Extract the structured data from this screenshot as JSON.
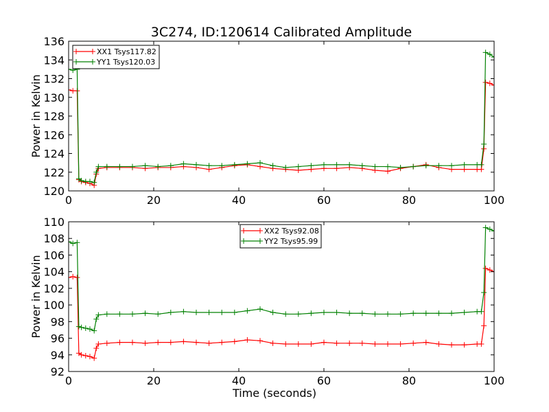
{
  "title": "3C274, ID:120614 Calibrated Amplitude",
  "chart_data": [
    {
      "type": "line",
      "ylabel": "Power in Kelvin",
      "xlabel": "",
      "xlim": [
        0,
        100
      ],
      "ylim": [
        120,
        136
      ],
      "xticks": [
        "0",
        "20",
        "40",
        "60",
        "80",
        "100"
      ],
      "yticks": [
        "120",
        "122",
        "124",
        "126",
        "128",
        "130",
        "132",
        "134",
        "136"
      ],
      "legend_position": "top-left",
      "marker": "plus",
      "series": [
        {
          "name": "XX1 Tsys117.82",
          "color": "#ff0000",
          "x": [
            0,
            1,
            2,
            2.4,
            3,
            4,
            5,
            6,
            6.5,
            7,
            9,
            12,
            15,
            18,
            21,
            24,
            27,
            30,
            33,
            36,
            39,
            42,
            45,
            48,
            51,
            54,
            57,
            60,
            63,
            66,
            69,
            72,
            75,
            78,
            81,
            84,
            87,
            90,
            93,
            96,
            97,
            97.6,
            98,
            99,
            100
          ],
          "y": [
            130.8,
            130.7,
            130.7,
            121.2,
            121.0,
            120.9,
            120.8,
            120.6,
            121.8,
            122.4,
            122.5,
            122.5,
            122.5,
            122.4,
            122.5,
            122.5,
            122.6,
            122.5,
            122.3,
            122.5,
            122.7,
            122.8,
            122.6,
            122.4,
            122.3,
            122.2,
            122.3,
            122.4,
            122.4,
            122.5,
            122.4,
            122.2,
            122.1,
            122.4,
            122.6,
            122.8,
            122.5,
            122.3,
            122.3,
            122.3,
            122.3,
            124.5,
            131.6,
            131.5,
            131.3
          ]
        },
        {
          "name": "YY1 Tsys120.03",
          "color": "#008000",
          "x": [
            0,
            1,
            2,
            2.4,
            3,
            4,
            5,
            6,
            6.5,
            7,
            9,
            12,
            15,
            18,
            21,
            24,
            27,
            30,
            33,
            36,
            39,
            42,
            45,
            48,
            51,
            54,
            57,
            60,
            63,
            66,
            69,
            72,
            75,
            78,
            81,
            84,
            87,
            90,
            93,
            96,
            97,
            97.6,
            98,
            99,
            100
          ],
          "y": [
            133.0,
            132.9,
            133.0,
            121.3,
            121.1,
            121.0,
            121.0,
            120.9,
            122.0,
            122.6,
            122.6,
            122.6,
            122.6,
            122.7,
            122.6,
            122.7,
            122.9,
            122.8,
            122.7,
            122.7,
            122.8,
            122.9,
            123.0,
            122.7,
            122.5,
            122.6,
            122.7,
            122.8,
            122.8,
            122.8,
            122.7,
            122.6,
            122.6,
            122.5,
            122.6,
            122.7,
            122.7,
            122.7,
            122.8,
            122.8,
            122.8,
            125.0,
            134.8,
            134.6,
            134.3
          ]
        }
      ]
    },
    {
      "type": "line",
      "ylabel": "Power in Kelvin",
      "xlabel": "Time (seconds)",
      "xlim": [
        0,
        100
      ],
      "ylim": [
        92,
        110
      ],
      "xticks": [
        "0",
        "20",
        "40",
        "60",
        "80",
        "100"
      ],
      "yticks": [
        "92",
        "94",
        "96",
        "98",
        "100",
        "102",
        "104",
        "106",
        "108",
        "110"
      ],
      "legend_position": "top-center",
      "marker": "plus",
      "series": [
        {
          "name": "XX2 Tsys92.08",
          "color": "#ff0000",
          "x": [
            0,
            1,
            2,
            2.4,
            3,
            4,
            5,
            6,
            6.5,
            7,
            9,
            12,
            15,
            18,
            21,
            24,
            27,
            30,
            33,
            36,
            39,
            42,
            45,
            48,
            51,
            54,
            57,
            60,
            63,
            66,
            69,
            72,
            75,
            78,
            81,
            84,
            87,
            90,
            93,
            96,
            97,
            97.6,
            98,
            99,
            100
          ],
          "y": [
            103.3,
            103.4,
            103.3,
            94.2,
            94.0,
            93.9,
            93.8,
            93.6,
            94.8,
            95.3,
            95.4,
            95.5,
            95.5,
            95.4,
            95.5,
            95.5,
            95.6,
            95.5,
            95.4,
            95.5,
            95.6,
            95.8,
            95.7,
            95.4,
            95.3,
            95.3,
            95.3,
            95.5,
            95.4,
            95.4,
            95.4,
            95.3,
            95.3,
            95.3,
            95.4,
            95.5,
            95.3,
            95.2,
            95.2,
            95.3,
            95.3,
            97.5,
            104.4,
            104.2,
            104.0
          ]
        },
        {
          "name": "YY2 Tsys95.99",
          "color": "#008000",
          "x": [
            0,
            1,
            2,
            2.4,
            3,
            4,
            5,
            6,
            6.5,
            7,
            9,
            12,
            15,
            18,
            21,
            24,
            27,
            30,
            33,
            36,
            39,
            42,
            45,
            48,
            51,
            54,
            57,
            60,
            63,
            66,
            69,
            72,
            75,
            78,
            81,
            84,
            87,
            90,
            93,
            96,
            97,
            97.6,
            98,
            99,
            100
          ],
          "y": [
            107.6,
            107.4,
            107.5,
            97.4,
            97.3,
            97.2,
            97.1,
            96.9,
            98.3,
            98.8,
            98.9,
            98.9,
            98.9,
            99.0,
            98.9,
            99.1,
            99.2,
            99.1,
            99.1,
            99.1,
            99.1,
            99.3,
            99.5,
            99.1,
            98.9,
            98.9,
            99.0,
            99.1,
            99.1,
            99.0,
            99.0,
            98.9,
            98.9,
            98.9,
            99.0,
            99.0,
            99.0,
            99.0,
            99.1,
            99.2,
            99.2,
            101.5,
            109.3,
            109.1,
            108.9
          ]
        }
      ]
    }
  ]
}
